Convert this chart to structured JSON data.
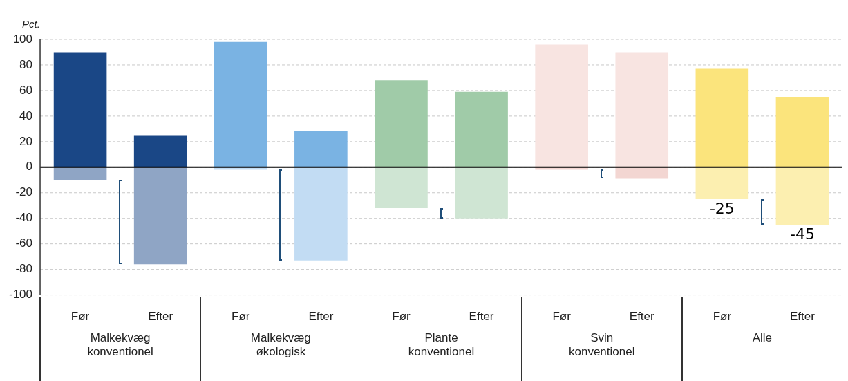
{
  "chart_data": {
    "type": "bar",
    "ylabel": "Pct.",
    "stacked": true,
    "categories": [
      "Før",
      "Efter",
      "Før",
      "Efter",
      "Før",
      "Efter",
      "Før",
      "Efter",
      "Før",
      "Efter"
    ],
    "annotations": [
      "Malkekvæg konventionel",
      "Malkekvæg økologisk",
      "Plante konventionel",
      "Svin konventionel",
      "Alle"
    ],
    "series": [
      {
        "colors": [
          "#1a4786",
          "#1a4786",
          "#7ab3e3",
          "#7ab3e3",
          "#a0cba8",
          "#a0cba8",
          "#f8e4e1",
          "#f8e4e1",
          "#fbe47c",
          "#fbe47c"
        ],
        "values": [
          90,
          25,
          98,
          28,
          68,
          59,
          96,
          90,
          77,
          55
        ]
      },
      {
        "colors": [
          "#8fa5c5",
          "#8fa5c5",
          "#c2dcf3",
          "#c2dcf3",
          "#cfe5d3",
          "#cfe5d3",
          "#f3d6d2",
          "#f3d6d2",
          "#fcefb0",
          "#fcefb0"
        ],
        "values": [
          -10,
          -76,
          -2,
          -73,
          -32,
          -40,
          -2,
          -9,
          -25,
          -45
        ],
        "value_labels": [
          null,
          null,
          null,
          null,
          null,
          null,
          null,
          null,
          "-25",
          "-45"
        ]
      }
    ],
    "ylim": [
      -100,
      100
    ],
    "yticks": [
      -100,
      -80,
      -60,
      -40,
      -20,
      0,
      20,
      40,
      60,
      80,
      100
    ],
    "grid": "y",
    "legend": false
  }
}
